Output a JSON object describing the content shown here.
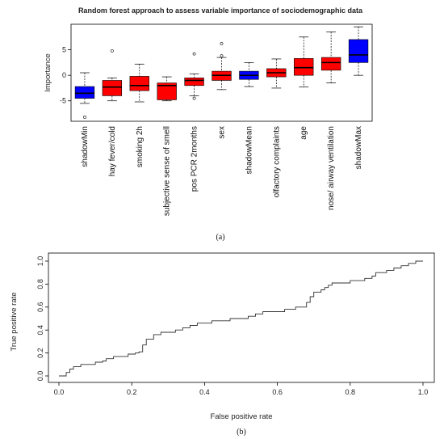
{
  "chart_data": [
    {
      "type": "box",
      "panel_label": "(a)",
      "title": "Random forest approach to assess variable importance of sociodemographic data",
      "ylabel": "Importance",
      "xlabel": "",
      "ylim": [
        -9,
        10
      ],
      "yticks": [
        -5,
        0,
        5
      ],
      "categories": [
        "shadowMin",
        "hay fever/cold",
        "smoking 2h",
        "subjective sense of smell",
        "pos PCR 2months",
        "sex",
        "shadowMean",
        "olfactory complaints",
        "age",
        "nose/ airway ventilation",
        "shadowMax"
      ],
      "colors": [
        "#0000ff",
        "#ff0000",
        "#ff0000",
        "#ff0000",
        "#ff0000",
        "#ff0000",
        "#0000ff",
        "#ff0000",
        "#ff0000",
        "#ff0000",
        "#0000ff"
      ],
      "boxes": [
        {
          "min": -5.5,
          "q1": -4.5,
          "median": -3.5,
          "q3": -2.2,
          "max": 0.5,
          "outliers": [
            -8.2
          ]
        },
        {
          "min": -5.0,
          "q1": -4.0,
          "median": -2.3,
          "q3": -1.0,
          "max": -0.5,
          "outliers": [
            4.8
          ]
        },
        {
          "min": -5.2,
          "q1": -3.0,
          "median": -2.0,
          "q3": -0.2,
          "max": 2.2,
          "outliers": []
        },
        {
          "min": -5.0,
          "q1": -4.8,
          "median": -2.0,
          "q3": -1.5,
          "max": -0.3,
          "outliers": []
        },
        {
          "min": -4.0,
          "q1": -2.0,
          "median": -1.0,
          "q3": -0.5,
          "max": 0.3,
          "outliers": [
            4.2,
            -4.5
          ]
        },
        {
          "min": -2.8,
          "q1": -1.0,
          "median": 0.0,
          "q3": 0.8,
          "max": 3.5,
          "outliers": [
            6.2,
            3.8
          ]
        },
        {
          "min": -2.2,
          "q1": -0.8,
          "median": 0.0,
          "q3": 0.8,
          "max": 2.5,
          "outliers": []
        },
        {
          "min": -2.5,
          "q1": -0.3,
          "median": 0.5,
          "q3": 1.3,
          "max": 3.2,
          "outliers": []
        },
        {
          "min": -2.3,
          "q1": 0.0,
          "median": 1.5,
          "q3": 3.3,
          "max": 7.5,
          "outliers": []
        },
        {
          "min": -1.5,
          "q1": 1.0,
          "median": 2.5,
          "q3": 3.5,
          "max": 8.5,
          "outliers": []
        },
        {
          "min": 0.0,
          "q1": 2.5,
          "median": 4.0,
          "q3": 7.0,
          "max": 9.5,
          "outliers": []
        }
      ]
    },
    {
      "type": "line",
      "panel_label": "(b)",
      "title": "",
      "xlabel": "False positive rate",
      "ylabel": "True positive rate",
      "xlim": [
        0,
        1
      ],
      "ylim": [
        0,
        1
      ],
      "xticks": [
        "0.0",
        "0.2",
        "0.4",
        "0.6",
        "0.8",
        "1.0"
      ],
      "yticks": [
        "0.0",
        "0.2",
        "0.4",
        "0.6",
        "0.8",
        "1.0"
      ],
      "series": [
        {
          "name": "",
          "x": [
            0,
            0.02,
            0.02,
            0.03,
            0.03,
            0.04,
            0.04,
            0.06,
            0.06,
            0.1,
            0.1,
            0.12,
            0.12,
            0.13,
            0.13,
            0.15,
            0.15,
            0.19,
            0.19,
            0.21,
            0.21,
            0.22,
            0.22,
            0.23,
            0.23,
            0.24,
            0.24,
            0.26,
            0.26,
            0.28,
            0.28,
            0.32,
            0.32,
            0.34,
            0.34,
            0.36,
            0.36,
            0.38,
            0.38,
            0.42,
            0.42,
            0.47,
            0.47,
            0.52,
            0.52,
            0.54,
            0.54,
            0.56,
            0.56,
            0.62,
            0.62,
            0.65,
            0.65,
            0.68,
            0.68,
            0.69,
            0.69,
            0.7,
            0.7,
            0.72,
            0.72,
            0.73,
            0.73,
            0.74,
            0.74,
            0.75,
            0.75,
            0.8,
            0.8,
            0.84,
            0.84,
            0.86,
            0.86,
            0.87,
            0.87,
            0.9,
            0.9,
            0.92,
            0.92,
            0.94,
            0.94,
            0.96,
            0.96,
            0.98,
            0.98,
            1.0
          ],
          "y": [
            0,
            0,
            0.03,
            0.03,
            0.06,
            0.06,
            0.08,
            0.08,
            0.1,
            0.1,
            0.12,
            0.12,
            0.13,
            0.13,
            0.15,
            0.15,
            0.17,
            0.17,
            0.19,
            0.19,
            0.2,
            0.2,
            0.21,
            0.21,
            0.27,
            0.27,
            0.32,
            0.32,
            0.36,
            0.36,
            0.38,
            0.38,
            0.4,
            0.4,
            0.42,
            0.42,
            0.44,
            0.44,
            0.46,
            0.46,
            0.48,
            0.48,
            0.5,
            0.5,
            0.52,
            0.52,
            0.54,
            0.54,
            0.56,
            0.56,
            0.58,
            0.58,
            0.6,
            0.6,
            0.64,
            0.64,
            0.69,
            0.69,
            0.73,
            0.73,
            0.75,
            0.75,
            0.77,
            0.77,
            0.79,
            0.79,
            0.81,
            0.81,
            0.83,
            0.83,
            0.85,
            0.85,
            0.87,
            0.87,
            0.9,
            0.9,
            0.92,
            0.92,
            0.94,
            0.94,
            0.96,
            0.96,
            0.98,
            0.98,
            1.0,
            1.0
          ]
        }
      ]
    }
  ]
}
